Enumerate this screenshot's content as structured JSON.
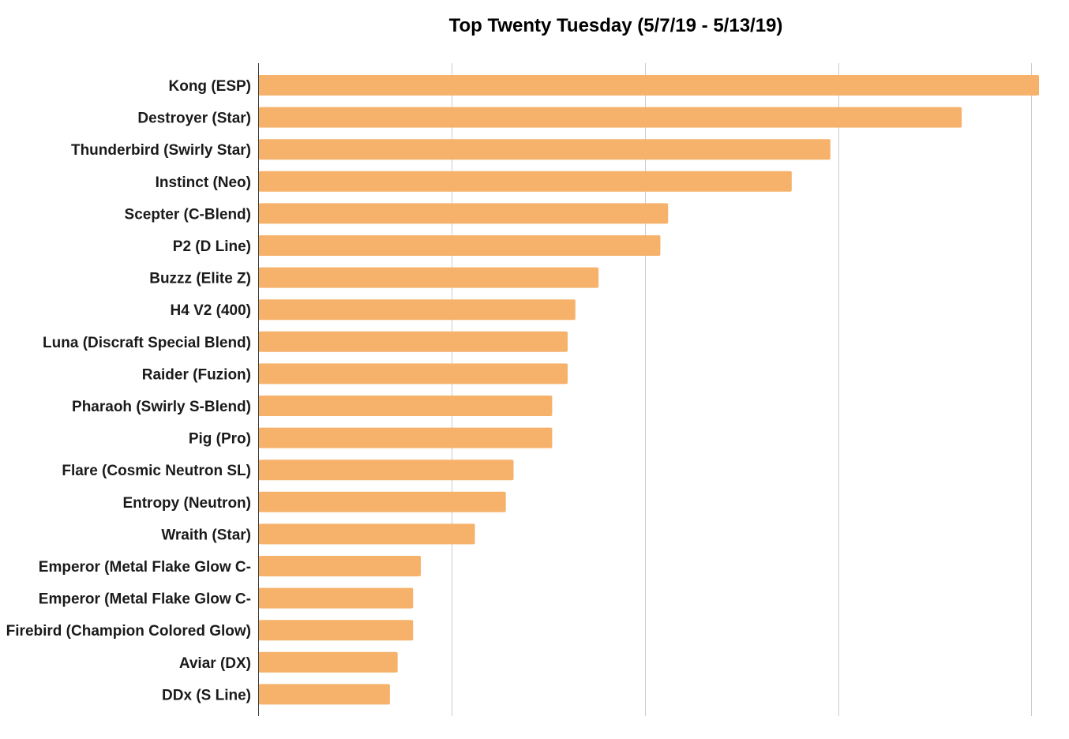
{
  "chart_data": {
    "type": "bar",
    "orientation": "horizontal",
    "title": "Top Twenty Tuesday (5/7/19 - 5/13/19)",
    "xlabel": "",
    "ylabel": "",
    "xlim": [
      0,
      101
    ],
    "gridlines_x": [
      0,
      25,
      50,
      75,
      100
    ],
    "grid": true,
    "legend": "none",
    "bar_color": "#F6B26B",
    "categories": [
      "Kong (ESP)",
      "Destroyer (Star)",
      "Thunderbird (Swirly Star)",
      "Instinct (Neo)",
      "Scepter (C-Blend)",
      "P2 (D Line)",
      "Buzzz (Elite Z)",
      "H4 V2 (400)",
      "Luna (Discraft Special Blend)",
      "Raider (Fuzion)",
      "Pharaoh (Swirly S-Blend)",
      "Pig (Pro)",
      "Flare (Cosmic Neutron SL)",
      "Entropy (Neutron)",
      "Wraith (Star)",
      "Emperor (Metal Flake Glow C-",
      "Emperor (Metal Flake Glow C-",
      "Firebird (Champion Colored Glow)",
      "Aviar (DX)",
      "DDx (S Line)"
    ],
    "values": [
      101,
      91,
      74,
      69,
      53,
      52,
      44,
      41,
      40,
      40,
      38,
      38,
      33,
      32,
      28,
      21,
      20,
      20,
      18,
      17
    ]
  }
}
